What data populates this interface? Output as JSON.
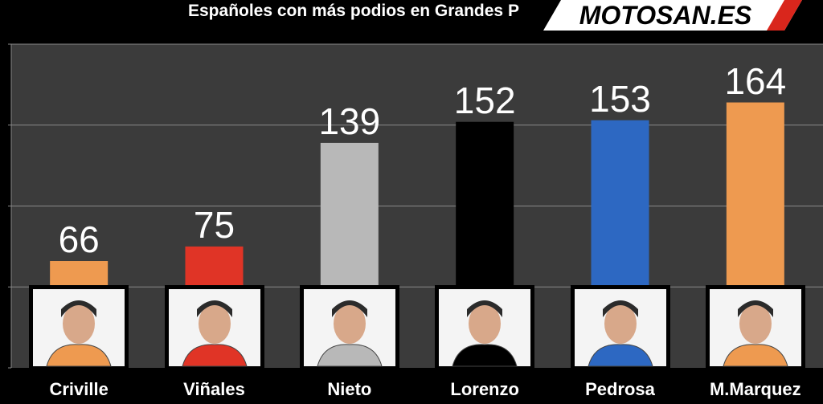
{
  "chart_data": {
    "type": "bar",
    "title": "Españoles con más podios en Grandes P",
    "categories": [
      "Criville",
      "Viñales",
      "Nieto",
      "Lorenzo",
      "Pedrosa",
      "M.Marquez"
    ],
    "values": [
      66,
      75,
      139,
      152,
      153,
      164
    ],
    "colors": [
      "#ee9a50",
      "#e03426",
      "#b8b8b8",
      "#000000",
      "#2d68c2",
      "#ee9a50"
    ],
    "ylim": [
      0,
      200
    ],
    "grid": true,
    "xlabel": "",
    "ylabel": ""
  },
  "branding": {
    "logo_text": "MOTOSAN.ES"
  },
  "icons": [
    "rider-portrait-icon"
  ]
}
